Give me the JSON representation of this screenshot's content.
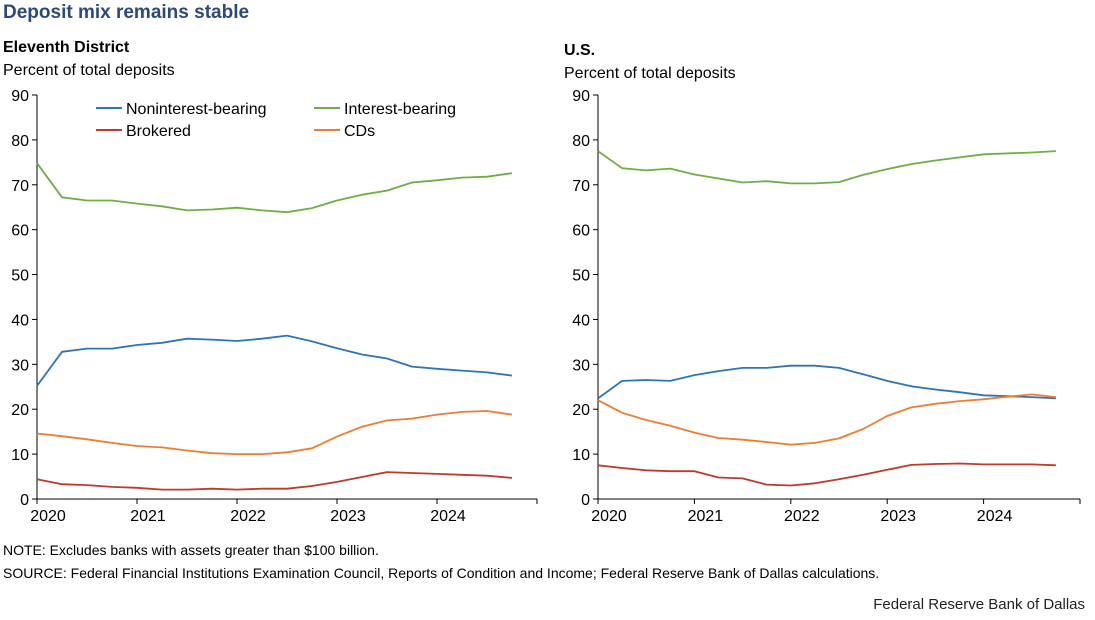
{
  "title": "Deposit mix remains stable",
  "note": "NOTE: Excludes banks with assets greater than $100 billion.",
  "source": "SOURCE: Federal Financial Institutions  Examination Council, Reports of Condition and Income;  Federal Reserve Bank of Dallas calculations.",
  "credit": "Federal Reserve Bank of Dallas",
  "colors": {
    "Noninterest-bearing": "#2e75b6",
    "Interest-bearing": "#70ad47",
    "Brokered": "#c0392b",
    "CDs": "#ed7d31"
  },
  "chart_data": [
    {
      "type": "line",
      "title": "Eleventh District",
      "ylabel": "Percent of total deposits",
      "xlabel": "",
      "ylim": [
        0,
        90
      ],
      "yticks": [
        "0",
        "10",
        "20",
        "30",
        "40",
        "50",
        "60",
        "70",
        "80",
        "90"
      ],
      "xlim": [
        2020,
        2025
      ],
      "xticks": [
        "2020",
        "2021",
        "2022",
        "2023",
        "2024"
      ],
      "legend": [
        "Noninterest-bearing",
        "Interest-bearing",
        "Brokered",
        "CDs"
      ],
      "x": [
        2020.0,
        2020.25,
        2020.5,
        2020.75,
        2021.0,
        2021.25,
        2021.5,
        2021.75,
        2022.0,
        2022.25,
        2022.5,
        2022.75,
        2023.0,
        2023.25,
        2023.5,
        2023.75,
        2024.0,
        2024.25,
        2024.5,
        2024.75
      ],
      "series": [
        {
          "name": "Noninterest-bearing",
          "values": [
            25.2,
            32.8,
            33.5,
            33.5,
            34.3,
            34.8,
            35.7,
            35.5,
            35.2,
            35.7,
            36.4,
            35.1,
            33.6,
            32.2,
            31.3,
            29.5,
            29.0,
            28.6,
            28.2,
            27.5
          ]
        },
        {
          "name": "Interest-bearing",
          "values": [
            74.8,
            67.2,
            66.5,
            66.5,
            65.8,
            65.2,
            64.3,
            64.5,
            64.9,
            64.3,
            63.9,
            64.8,
            66.5,
            67.8,
            68.7,
            70.5,
            71.0,
            71.6,
            71.8,
            72.6
          ]
        },
        {
          "name": "Brokered",
          "values": [
            4.4,
            3.3,
            3.1,
            2.7,
            2.5,
            2.1,
            2.1,
            2.3,
            2.1,
            2.3,
            2.3,
            2.9,
            3.8,
            4.9,
            6.0,
            5.8,
            5.6,
            5.4,
            5.2,
            4.7
          ]
        },
        {
          "name": "CDs",
          "values": [
            14.6,
            14.0,
            13.3,
            12.5,
            11.8,
            11.5,
            10.8,
            10.2,
            10.0,
            10.0,
            10.4,
            11.3,
            13.9,
            16.1,
            17.5,
            17.9,
            18.8,
            19.4,
            19.6,
            18.8
          ]
        }
      ]
    },
    {
      "type": "line",
      "title": "U.S.",
      "ylabel": "Percent of total deposits",
      "xlabel": "",
      "ylim": [
        0,
        90
      ],
      "yticks": [
        "0",
        "10",
        "20",
        "30",
        "40",
        "50",
        "60",
        "70",
        "80",
        "90"
      ],
      "xlim": [
        2020,
        2025
      ],
      "xticks": [
        "2020",
        "2021",
        "2022",
        "2023",
        "2024"
      ],
      "x": [
        2020.0,
        2020.25,
        2020.5,
        2020.75,
        2021.0,
        2021.25,
        2021.5,
        2021.75,
        2022.0,
        2022.25,
        2022.5,
        2022.75,
        2023.0,
        2023.25,
        2023.5,
        2023.75,
        2024.0,
        2024.25,
        2024.5,
        2024.75
      ],
      "series": [
        {
          "name": "Noninterest-bearing",
          "values": [
            22.4,
            26.3,
            26.5,
            26.3,
            27.6,
            28.5,
            29.2,
            29.2,
            29.7,
            29.7,
            29.2,
            27.8,
            26.3,
            25.1,
            24.4,
            23.8,
            23.1,
            22.9,
            22.7,
            22.4
          ]
        },
        {
          "name": "Interest-bearing",
          "values": [
            77.5,
            73.7,
            73.2,
            73.6,
            72.3,
            71.4,
            70.5,
            70.8,
            70.3,
            70.3,
            70.6,
            72.2,
            73.5,
            74.6,
            75.4,
            76.1,
            76.8,
            77.0,
            77.2,
            77.5
          ]
        },
        {
          "name": "Brokered",
          "values": [
            7.5,
            6.9,
            6.4,
            6.2,
            6.2,
            4.8,
            4.6,
            3.2,
            3.0,
            3.5,
            4.4,
            5.4,
            6.5,
            7.6,
            7.8,
            7.9,
            7.7,
            7.7,
            7.7,
            7.5
          ]
        },
        {
          "name": "CDs",
          "values": [
            22.0,
            19.2,
            17.6,
            16.3,
            14.8,
            13.6,
            13.2,
            12.7,
            12.1,
            12.5,
            13.5,
            15.6,
            18.5,
            20.4,
            21.2,
            21.8,
            22.2,
            22.8,
            23.3,
            22.7
          ]
        }
      ]
    }
  ]
}
